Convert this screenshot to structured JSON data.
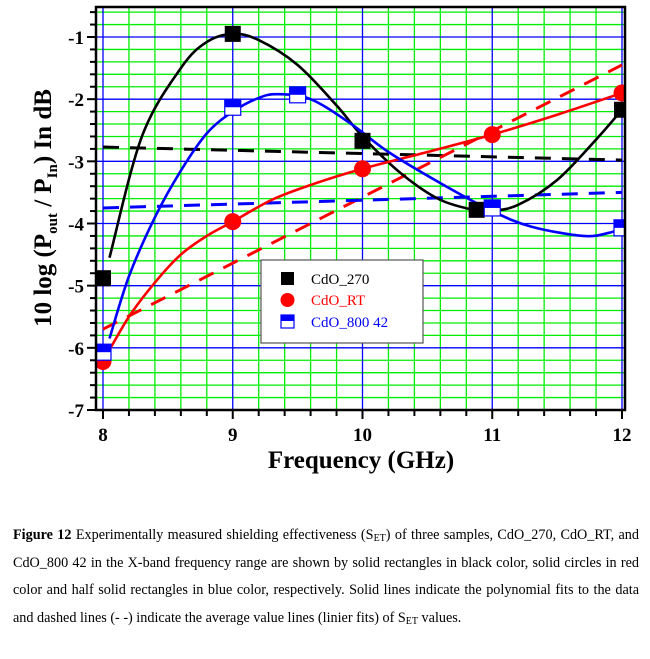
{
  "chart_data": {
    "type": "line",
    "title": "",
    "xlabel": "Frequency (GHz)",
    "ylabel": {
      "prefix": "10 log (P",
      "sub1": "out",
      "middle": " / P",
      "sub2": "In",
      "suffix": ") In dB"
    },
    "xlim": [
      8,
      12
    ],
    "ylim": [
      -7,
      -0.5
    ],
    "xticks": [
      8,
      9,
      10,
      11,
      12
    ],
    "xtick_labels": [
      "8",
      "9",
      "10",
      "11",
      "12"
    ],
    "yticks": [
      -1,
      -2,
      -3,
      -4,
      -5,
      -6,
      -7
    ],
    "ytick_labels": [
      "-1",
      "-2",
      "-3",
      "-4",
      "-5",
      "-6",
      "-7"
    ],
    "grid": {
      "on": true,
      "major_color": "#0000ff",
      "minor_color": "#00ee00",
      "x_minor_step": 0.2,
      "y_minor_step": 0.2
    },
    "legend_placement": "center-right",
    "series": [
      {
        "name": "CdO_270",
        "color": "#000000",
        "marker": "square-filled",
        "points": {
          "x": [
            8,
            9,
            10,
            10.88,
            12
          ],
          "y": [
            -4.88,
            -0.95,
            -2.67,
            -3.78,
            -2.17
          ]
        },
        "poly_fit": {
          "x": [
            8.05,
            8.3,
            8.6,
            8.8,
            9.0,
            9.2,
            9.5,
            9.8,
            10.0,
            10.3,
            10.6,
            10.9,
            11.0,
            11.2,
            11.5,
            11.8,
            12.0
          ],
          "y": [
            -4.55,
            -2.6,
            -1.5,
            -1.08,
            -0.95,
            -1.05,
            -1.45,
            -2.1,
            -2.6,
            -3.2,
            -3.62,
            -3.8,
            -3.8,
            -3.7,
            -3.3,
            -2.65,
            -2.17
          ]
        },
        "avg_line": {
          "x": [
            8,
            12
          ],
          "y": [
            -2.77,
            -2.98
          ]
        }
      },
      {
        "name": "CdO_RT",
        "color": "#ff0000",
        "marker": "circle-filled",
        "points": {
          "x": [
            8,
            9,
            10,
            11,
            12
          ],
          "y": [
            -6.22,
            -3.97,
            -3.12,
            -2.57,
            -1.9
          ]
        },
        "poly_fit": {
          "x": [
            8.0,
            8.2,
            8.4,
            8.6,
            8.8,
            9.0,
            9.3,
            9.6,
            10.0,
            10.5,
            11.0,
            11.5,
            12.0
          ],
          "y": [
            -6.22,
            -5.5,
            -4.95,
            -4.5,
            -4.2,
            -3.97,
            -3.62,
            -3.38,
            -3.12,
            -2.85,
            -2.57,
            -2.25,
            -1.9
          ]
        },
        "avg_line": {
          "x": [
            8,
            12
          ],
          "y": [
            -5.7,
            -1.45
          ]
        }
      },
      {
        "name": "CdO_800 42",
        "color": "#0000ff",
        "marker": "square-half-filled",
        "points": {
          "x": [
            8,
            9,
            9.5,
            11,
            12
          ],
          "y": [
            -6.07,
            -2.13,
            -1.93,
            -3.75,
            -4.07
          ]
        },
        "poly_fit": {
          "x": [
            8.05,
            8.2,
            8.4,
            8.6,
            8.8,
            9.0,
            9.2,
            9.35,
            9.6,
            9.9,
            10.2,
            10.6,
            11.0,
            11.3,
            11.7,
            11.9,
            12.0
          ],
          "y": [
            -5.85,
            -4.85,
            -3.9,
            -3.15,
            -2.55,
            -2.2,
            -1.98,
            -1.92,
            -2.0,
            -2.38,
            -2.85,
            -3.35,
            -3.8,
            -4.05,
            -4.2,
            -4.15,
            -4.07
          ]
        },
        "avg_line": {
          "x": [
            8,
            12
          ],
          "y": [
            -3.75,
            -3.5
          ]
        }
      }
    ]
  },
  "caption": {
    "figure_label": "Figure 12",
    "part1": " Experimentally measured shielding effectiveness (S",
    "sub_a": "ET",
    "part2": ") of three samples, CdO_270, CdO_RT, and CdO_800 42 in the X-band frequency range are shown by solid rectangles in black color, solid circles in red color and half solid rectangles in blue color, respectively. Solid lines indicate the polynomial fits to the data and dashed lines (- -) indicate the average value lines (linier fits) of S",
    "sub_b": "ET",
    "part3": " values."
  }
}
